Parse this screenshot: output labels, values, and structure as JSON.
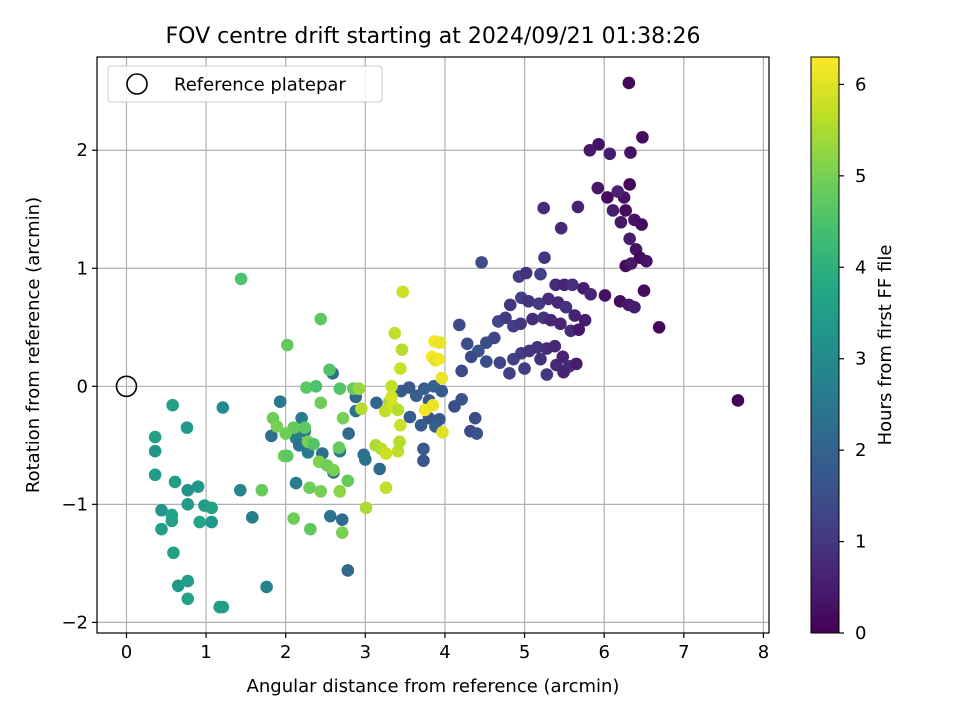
{
  "chart_data": {
    "type": "scatter",
    "title": "FOV centre drift starting at 2024/09/21 01:38:26",
    "xlabel": "Angular distance from reference (arcmin)",
    "ylabel": "Rotation from reference (arcmin)",
    "xlim": [
      -0.37,
      8.07
    ],
    "ylim": [
      -2.09,
      2.79
    ],
    "x_ticks": [
      0,
      1,
      2,
      3,
      4,
      5,
      6,
      7,
      8
    ],
    "x_tick_labels": [
      "0",
      "1",
      "2",
      "3",
      "4",
      "5",
      "6",
      "7",
      "8"
    ],
    "y_ticks": [
      -2,
      -1,
      0,
      1,
      2
    ],
    "y_tick_labels": [
      "−2",
      "−1",
      "0",
      "1",
      "2"
    ],
    "grid": true,
    "legend": {
      "label": "Reference platepar",
      "placement": "upper-left"
    },
    "colormap": "viridis",
    "colorbar": {
      "label": "Hours from first FF file",
      "range": [
        0,
        6.3
      ],
      "ticks": [
        0,
        1,
        2,
        3,
        4,
        5,
        6
      ],
      "tick_labels": [
        "0",
        "1",
        "2",
        "3",
        "4",
        "5",
        "6"
      ]
    },
    "reference_point": {
      "x": 0,
      "y": 0
    },
    "points": [
      [
        6.31,
        2.57,
        0.1
      ],
      [
        6.48,
        2.11,
        0.2
      ],
      [
        5.93,
        2.05,
        0.3
      ],
      [
        5.82,
        2.0,
        0.4
      ],
      [
        6.07,
        1.97,
        0.5
      ],
      [
        6.33,
        1.98,
        0.3
      ],
      [
        6.04,
        1.6,
        0.2
      ],
      [
        6.25,
        1.6,
        0.3
      ],
      [
        6.32,
        1.71,
        0.1
      ],
      [
        5.92,
        1.68,
        0.4
      ],
      [
        6.17,
        1.65,
        0.6
      ],
      [
        6.11,
        1.49,
        0.5
      ],
      [
        6.27,
        1.49,
        0.2
      ],
      [
        6.38,
        1.41,
        0.3
      ],
      [
        5.24,
        1.51,
        0.8
      ],
      [
        5.67,
        1.52,
        0.6
      ],
      [
        5.46,
        1.34,
        0.7
      ],
      [
        6.21,
        1.39,
        0.4
      ],
      [
        6.47,
        1.37,
        0.2
      ],
      [
        6.32,
        1.25,
        0.5
      ],
      [
        6.4,
        1.16,
        0.3
      ],
      [
        5.25,
        1.09,
        1.0
      ],
      [
        6.27,
        1.02,
        0.2
      ],
      [
        6.34,
        1.04,
        0.4
      ],
      [
        6.45,
        1.09,
        0.1
      ],
      [
        6.53,
        1.06,
        0.3
      ],
      [
        4.46,
        1.05,
        1.5
      ],
      [
        4.93,
        0.93,
        1.1
      ],
      [
        5.02,
        0.96,
        0.9
      ],
      [
        5.2,
        0.95,
        1.2
      ],
      [
        5.39,
        0.86,
        0.8
      ],
      [
        5.5,
        0.86,
        0.6
      ],
      [
        5.6,
        0.86,
        0.9
      ],
      [
        5.74,
        0.83,
        0.5
      ],
      [
        5.83,
        0.78,
        0.7
      ],
      [
        6.01,
        0.77,
        0.3
      ],
      [
        6.2,
        0.72,
        0.2
      ],
      [
        6.31,
        0.69,
        0.4
      ],
      [
        6.38,
        0.67,
        0.5
      ],
      [
        6.5,
        0.81,
        0.2
      ],
      [
        6.69,
        0.5,
        0.1
      ],
      [
        4.82,
        0.69,
        1.0
      ],
      [
        4.96,
        0.75,
        1.2
      ],
      [
        5.05,
        0.72,
        0.9
      ],
      [
        5.18,
        0.7,
        1.1
      ],
      [
        5.3,
        0.74,
        0.8
      ],
      [
        5.42,
        0.71,
        0.7
      ],
      [
        5.52,
        0.67,
        0.9
      ],
      [
        5.63,
        0.6,
        0.6
      ],
      [
        5.76,
        0.56,
        0.5
      ],
      [
        5.1,
        0.57,
        0.8
      ],
      [
        5.24,
        0.58,
        1.0
      ],
      [
        5.33,
        0.56,
        0.7
      ],
      [
        5.45,
        0.53,
        0.6
      ],
      [
        5.58,
        0.47,
        0.8
      ],
      [
        5.68,
        0.48,
        0.4
      ],
      [
        4.67,
        0.55,
        1.3
      ],
      [
        4.76,
        0.58,
        1.1
      ],
      [
        4.86,
        0.51,
        1.2
      ],
      [
        4.95,
        0.53,
        1.0
      ],
      [
        4.18,
        0.52,
        1.4
      ],
      [
        4.28,
        0.36,
        1.5
      ],
      [
        4.42,
        0.3,
        1.6
      ],
      [
        4.52,
        0.37,
        1.5
      ],
      [
        4.62,
        0.41,
        1.3
      ],
      [
        4.33,
        0.25,
        1.4
      ],
      [
        4.52,
        0.21,
        1.5
      ],
      [
        4.69,
        0.2,
        1.3
      ],
      [
        4.86,
        0.23,
        1.2
      ],
      [
        4.96,
        0.28,
        1.1
      ],
      [
        5.06,
        0.3,
        1.0
      ],
      [
        5.16,
        0.33,
        0.9
      ],
      [
        5.28,
        0.32,
        0.8
      ],
      [
        5.38,
        0.34,
        0.7
      ],
      [
        5.48,
        0.25,
        0.6
      ],
      [
        5.56,
        0.17,
        0.8
      ],
      [
        5.65,
        0.19,
        0.5
      ],
      [
        4.21,
        0.13,
        1.4
      ],
      [
        4.81,
        0.11,
        1.2
      ],
      [
        5.0,
        0.15,
        1.1
      ],
      [
        5.2,
        0.23,
        0.9
      ],
      [
        5.28,
        0.1,
        1.0
      ],
      [
        5.4,
        0.18,
        0.7
      ],
      [
        5.49,
        0.12,
        0.6
      ],
      [
        7.68,
        -0.12,
        0.05
      ],
      [
        3.45,
        -0.04,
        1.8
      ],
      [
        3.55,
        -0.01,
        1.7
      ],
      [
        3.74,
        -0.02,
        1.9
      ],
      [
        3.86,
        0.0,
        2.0
      ],
      [
        3.96,
        -0.04,
        1.8
      ],
      [
        3.64,
        -0.08,
        1.9
      ],
      [
        3.8,
        -0.12,
        1.7
      ],
      [
        3.14,
        -0.14,
        2.1
      ],
      [
        3.56,
        -0.26,
        1.8
      ],
      [
        3.8,
        -0.27,
        1.6
      ],
      [
        3.93,
        -0.28,
        1.7
      ],
      [
        4.12,
        -0.17,
        1.5
      ],
      [
        4.21,
        -0.11,
        1.6
      ],
      [
        4.38,
        -0.27,
        1.5
      ],
      [
        3.7,
        -0.33,
        1.8
      ],
      [
        3.88,
        -0.34,
        1.9
      ],
      [
        4.32,
        -0.38,
        1.4
      ],
      [
        4.4,
        -0.4,
        1.6
      ],
      [
        3.73,
        -0.53,
        1.8
      ],
      [
        3.73,
        -0.63,
        1.7
      ],
      [
        2.59,
        0.11,
        2.3
      ],
      [
        1.93,
        -0.13,
        2.5
      ],
      [
        2.88,
        -0.09,
        2.2
      ],
      [
        2.88,
        -0.21,
        2.4
      ],
      [
        2.2,
        -0.27,
        2.6
      ],
      [
        2.24,
        -0.38,
        2.5
      ],
      [
        2.13,
        -0.44,
        2.7
      ],
      [
        2.17,
        -0.5,
        2.4
      ],
      [
        2.28,
        -0.56,
        2.6
      ],
      [
        2.46,
        -0.57,
        2.3
      ],
      [
        2.68,
        -0.55,
        2.5
      ],
      [
        2.79,
        -0.4,
        2.2
      ],
      [
        2.98,
        -0.58,
        2.3
      ],
      [
        3.0,
        -0.62,
        2.4
      ],
      [
        3.18,
        -0.7,
        2.2
      ],
      [
        2.6,
        -0.73,
        2.1
      ],
      [
        2.13,
        -0.82,
        2.6
      ],
      [
        1.82,
        -0.42,
        2.3
      ],
      [
        2.56,
        -1.1,
        2.4
      ],
      [
        2.71,
        -1.13,
        2.2
      ],
      [
        2.78,
        -1.56,
        2.2
      ],
      [
        1.43,
        -0.88,
        2.9
      ],
      [
        1.58,
        -1.11,
        2.7
      ],
      [
        1.76,
        -1.7,
        2.8
      ],
      [
        1.21,
        -0.18,
        3.0
      ],
      [
        0.76,
        -0.35,
        3.4
      ],
      [
        0.36,
        -0.43,
        3.6
      ],
      [
        0.36,
        -0.55,
        3.3
      ],
      [
        0.36,
        -0.75,
        3.5
      ],
      [
        0.58,
        -0.16,
        3.6
      ],
      [
        0.61,
        -0.81,
        3.5
      ],
      [
        0.77,
        -0.88,
        3.2
      ],
      [
        0.9,
        -0.85,
        3.3
      ],
      [
        0.77,
        -1.0,
        3.4
      ],
      [
        0.98,
        -1.01,
        3.5
      ],
      [
        1.07,
        -1.03,
        3.6
      ],
      [
        0.44,
        -1.05,
        3.3
      ],
      [
        0.57,
        -1.09,
        3.7
      ],
      [
        0.57,
        -1.14,
        3.6
      ],
      [
        0.92,
        -1.15,
        3.7
      ],
      [
        1.07,
        -1.15,
        3.3
      ],
      [
        0.44,
        -1.21,
        3.5
      ],
      [
        0.59,
        -1.41,
        3.6
      ],
      [
        0.65,
        -1.69,
        3.4
      ],
      [
        0.77,
        -1.65,
        3.5
      ],
      [
        0.77,
        -1.8,
        3.6
      ],
      [
        1.17,
        -1.87,
        3.6
      ],
      [
        1.21,
        -1.87,
        3.5
      ],
      [
        1.44,
        0.91,
        4.5
      ],
      [
        2.44,
        0.57,
        4.7
      ],
      [
        2.02,
        0.35,
        4.8
      ],
      [
        2.55,
        0.14,
        4.6
      ],
      [
        2.26,
        -0.01,
        4.7
      ],
      [
        2.38,
        0.0,
        4.5
      ],
      [
        2.68,
        -0.02,
        4.6
      ],
      [
        2.85,
        -0.02,
        4.8
      ],
      [
        2.44,
        -0.14,
        4.9
      ],
      [
        1.84,
        -0.27,
        4.9
      ],
      [
        1.89,
        -0.34,
        5.0
      ],
      [
        2.1,
        -0.35,
        4.8
      ],
      [
        2.24,
        -0.35,
        4.7
      ],
      [
        2.0,
        -0.4,
        4.9
      ],
      [
        2.28,
        -0.47,
        5.0
      ],
      [
        2.35,
        -0.49,
        4.6
      ],
      [
        2.72,
        -0.27,
        5.0
      ],
      [
        2.67,
        -0.52,
        4.8
      ],
      [
        1.98,
        -0.59,
        4.9
      ],
      [
        2.02,
        -0.59,
        4.7
      ],
      [
        2.42,
        -0.64,
        5.1
      ],
      [
        2.52,
        -0.67,
        4.9
      ],
      [
        2.6,
        -0.71,
        5.0
      ],
      [
        2.78,
        -0.8,
        4.8
      ],
      [
        2.3,
        -0.86,
        4.9
      ],
      [
        2.68,
        -0.89,
        5.2
      ],
      [
        2.44,
        -0.89,
        5.0
      ],
      [
        1.7,
        -0.88,
        4.8
      ],
      [
        2.1,
        -1.12,
        4.9
      ],
      [
        2.31,
        -1.21,
        4.7
      ],
      [
        2.71,
        -1.24,
        5.0
      ],
      [
        3.01,
        -1.03,
        5.5
      ],
      [
        2.92,
        -0.02,
        5.3
      ],
      [
        2.95,
        -0.19,
        5.6
      ],
      [
        3.37,
        0.45,
        5.7
      ],
      [
        3.47,
        0.8,
        5.8
      ],
      [
        3.46,
        0.31,
        5.6
      ],
      [
        3.33,
        0.0,
        5.7
      ],
      [
        3.44,
        0.15,
        5.8
      ],
      [
        3.3,
        -0.13,
        5.5
      ],
      [
        3.25,
        -0.21,
        5.7
      ],
      [
        3.35,
        -0.17,
        5.9
      ],
      [
        3.41,
        -0.2,
        5.6
      ],
      [
        3.44,
        -0.33,
        5.8
      ],
      [
        3.13,
        -0.5,
        5.5
      ],
      [
        3.2,
        -0.53,
        5.6
      ],
      [
        3.41,
        -0.55,
        5.7
      ],
      [
        3.26,
        -0.57,
        5.8
      ],
      [
        3.43,
        -0.47,
        5.6
      ],
      [
        3.26,
        -0.86,
        5.7
      ],
      [
        3.87,
        0.38,
        6.2
      ],
      [
        3.94,
        0.37,
        6.1
      ],
      [
        3.84,
        0.25,
        6.3
      ],
      [
        3.88,
        0.22,
        6.0
      ],
      [
        3.92,
        0.23,
        6.2
      ],
      [
        3.96,
        0.07,
        6.1
      ],
      [
        3.75,
        -0.2,
        6.2
      ],
      [
        3.85,
        -0.16,
        6.1
      ],
      [
        3.97,
        -0.39,
        6.0
      ],
      [
        3.33,
        -0.09,
        5.9
      ]
    ]
  }
}
